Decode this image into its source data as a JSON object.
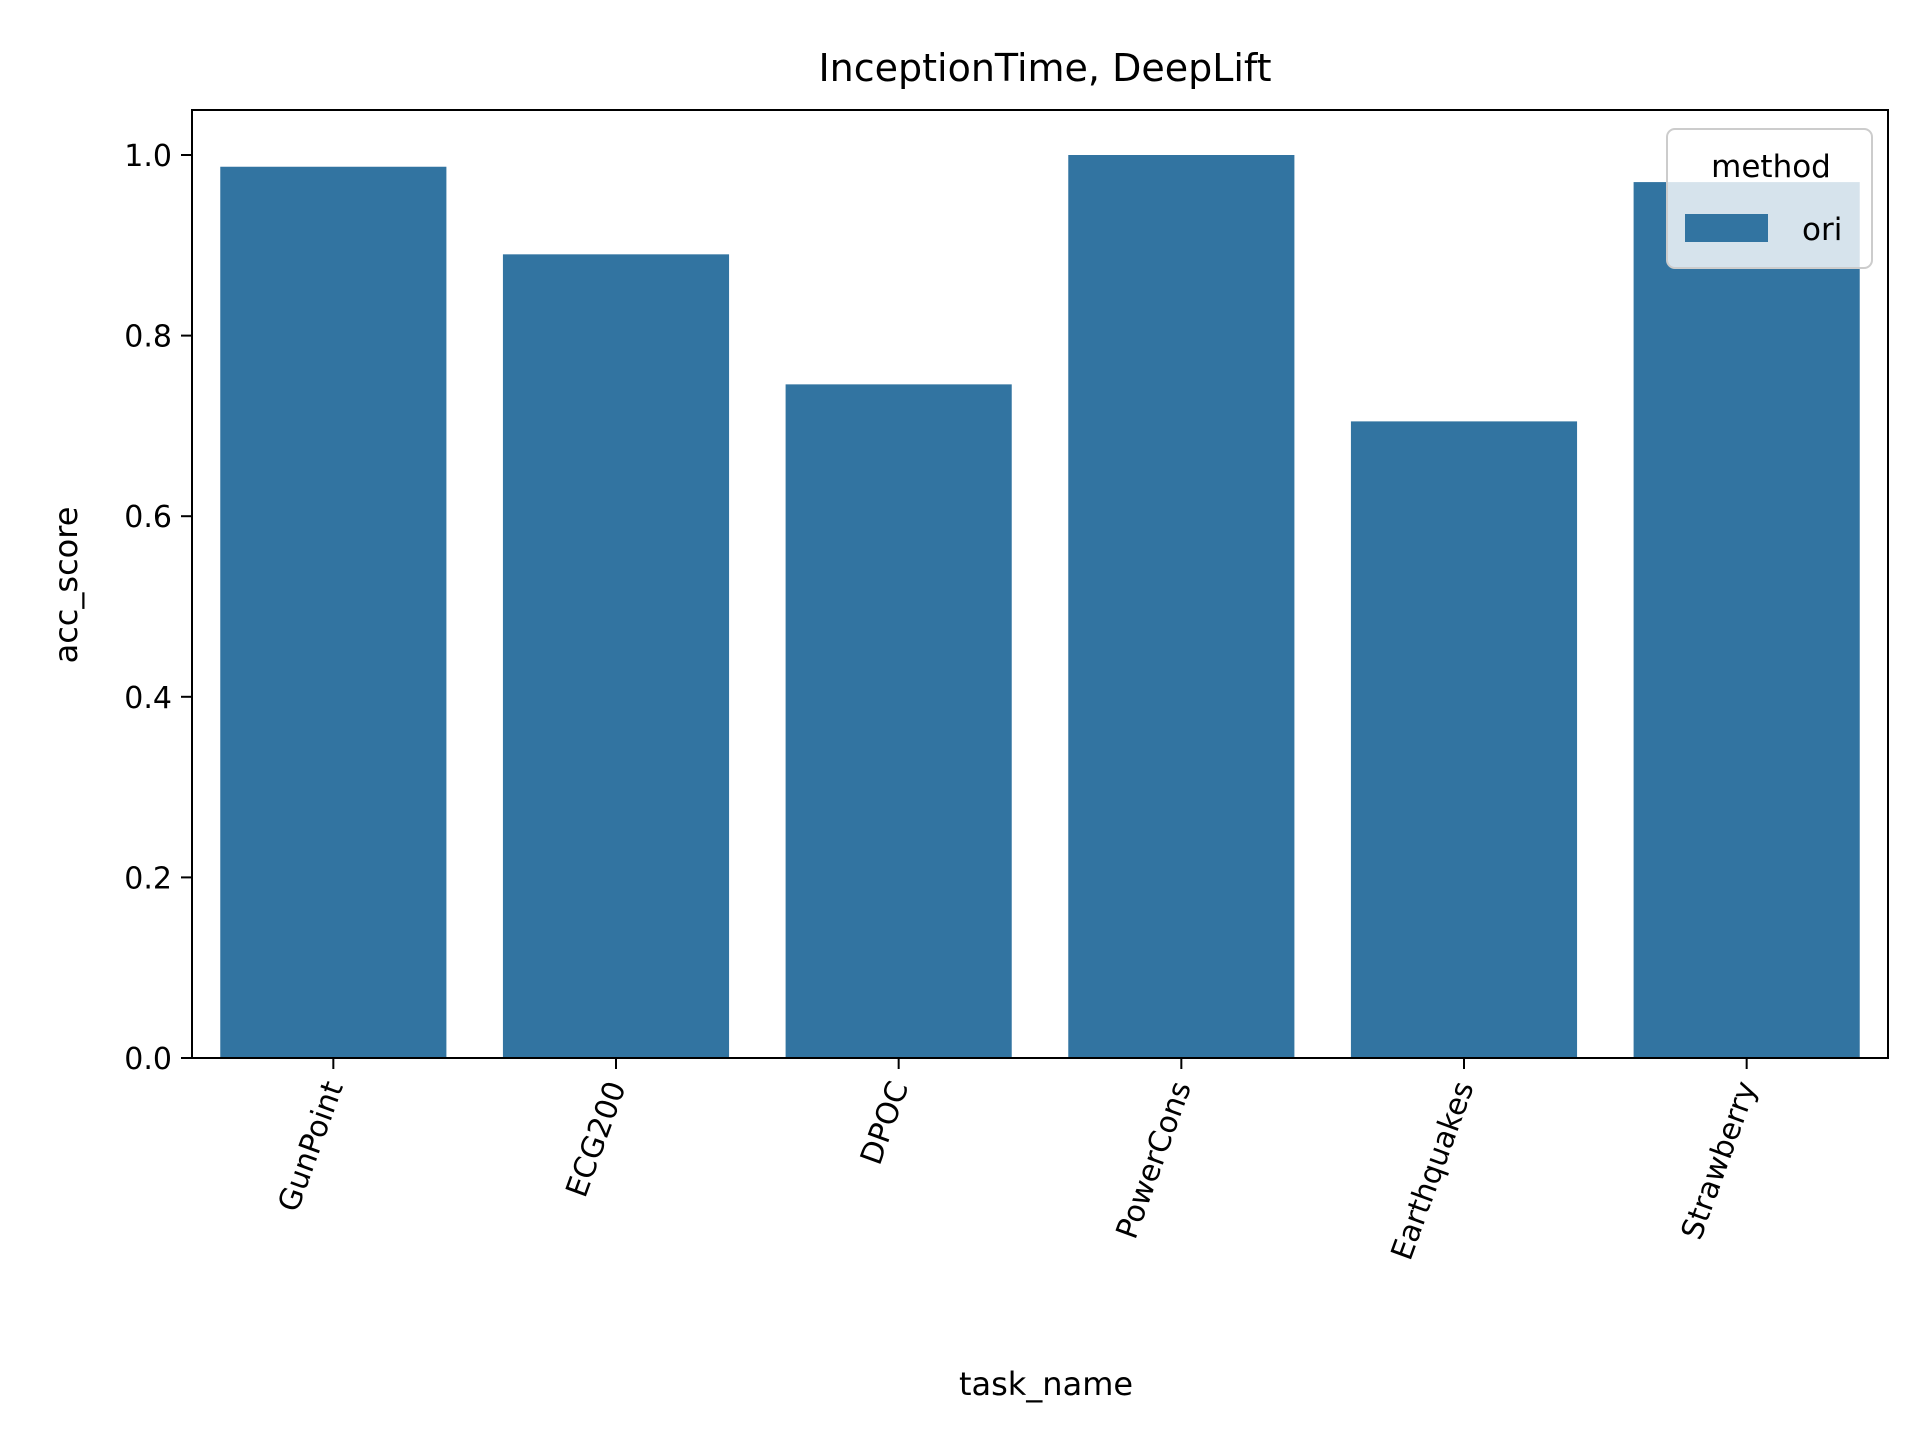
{
  "colors": {
    "bar": "#3274a1",
    "axis": "#000000",
    "background": "#ffffff"
  },
  "chart_data": {
    "type": "bar",
    "title": "InceptionTime, DeepLift",
    "xlabel": "task_name",
    "ylabel": "acc_score",
    "categories": [
      "GunPoint",
      "ECG200",
      "DPOC",
      "PowerCons",
      "Earthquakes",
      "Strawberry"
    ],
    "series": [
      {
        "name": "ori",
        "values": [
          0.987,
          0.89,
          0.746,
          1.0,
          0.705,
          0.97
        ]
      }
    ],
    "ylim": [
      0,
      1.05
    ],
    "yticks": [
      0.0,
      0.2,
      0.4,
      0.6,
      0.8,
      1.0
    ],
    "ytick_labels": [
      "0.0",
      "0.2",
      "0.4",
      "0.6",
      "0.8",
      "1.0"
    ],
    "grid": false,
    "legend": {
      "title": "method",
      "placement": "top-right"
    }
  }
}
